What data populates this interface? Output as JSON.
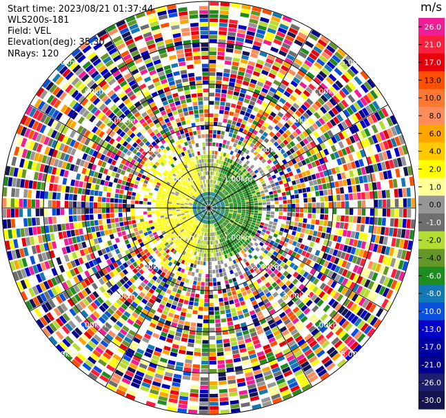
{
  "header": {
    "start_time": "Start time: 2023/08/21 01:37:44",
    "site": "WLS200s-181",
    "field": "Field: VEL",
    "elevation": "Elevation(deg): 35.30",
    "nrays": "NRays: 120"
  },
  "chart_data": {
    "type": "heatmap",
    "projection": "polar-ppi",
    "field": "VEL",
    "nrays": 120,
    "range_rings_km": [
      1.0,
      2.0,
      3.0,
      4.0,
      5.0
    ],
    "ring_labels": [
      "1.00km",
      "2.00km",
      "3.00km",
      "4.00km",
      "5.00km"
    ],
    "colorbar": {
      "unit": "m/s",
      "ticks": [
        "26.0",
        "21.0",
        "17.0",
        "13.0",
        "10.0",
        "8.0",
        "6.0",
        "4.0",
        "2.0",
        "1.0",
        "0.0",
        "-1.0",
        "-2.0",
        "-4.0",
        "-6.0",
        "-8.0",
        "-10.0",
        "-13.0",
        "-17.0",
        "-21.0",
        "-26.0",
        "-30.0"
      ],
      "colors": [
        "#f01e96",
        "#ff1e3c",
        "#e6000a",
        "#ff5000",
        "#ff7832",
        "#ff8c5a",
        "#ffa500",
        "#ffc800",
        "#ffff00",
        "#ffff96",
        "#969696",
        "#6e6e6e",
        "#b4dc32",
        "#649628",
        "#1e8c1e",
        "#1478b4",
        "#0a50dc",
        "#0000c8",
        "#0000a0",
        "#00008c",
        "#1e1e6e",
        "#141450"
      ]
    }
  }
}
